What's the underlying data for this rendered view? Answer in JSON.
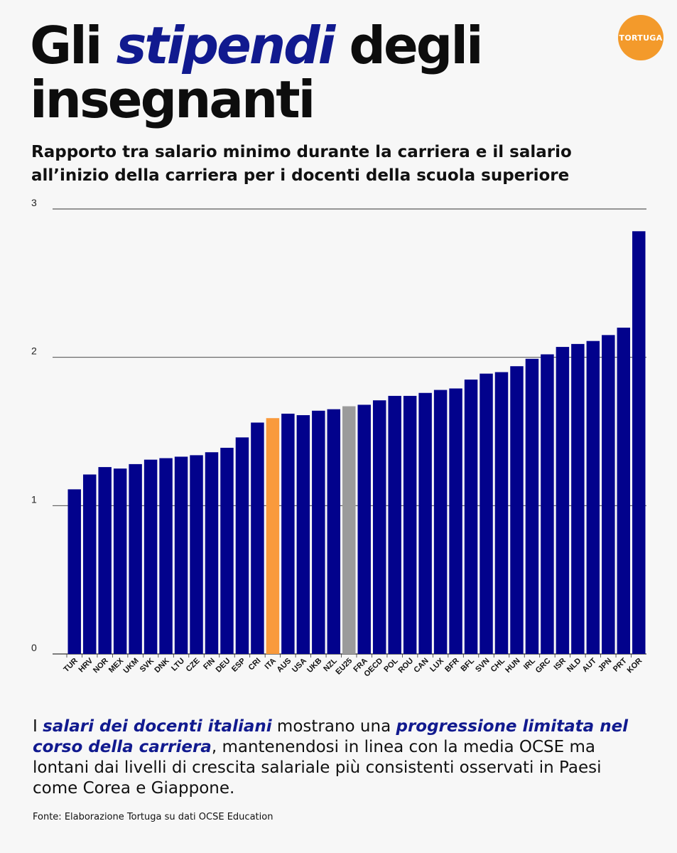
{
  "header": {
    "title_part1": "Gli ",
    "title_highlight": "stipendi",
    "title_part2": " degli",
    "title_line2": "insegnanti",
    "logo_text": "TORTUGA"
  },
  "subtitle": {
    "line1": "Rapporto tra salario minimo durante la carriera e il salario",
    "line2": "all’inizio della carriera per i docenti della scuola superiore"
  },
  "colors": {
    "bar": "#02028c",
    "highlight": "#f99a3c",
    "average": "#9b9b9b",
    "accent_text": "#111a8f",
    "logo": "#f39a2b"
  },
  "chart_data": {
    "type": "bar",
    "title": "Rapporto tra salario minimo durante la carriera e il salario all’inizio della carriera per i docenti della scuola superiore",
    "xlabel": "",
    "ylabel": "",
    "ylim": [
      0,
      3
    ],
    "yticks": [
      0,
      1,
      2,
      3
    ],
    "grid": true,
    "categories": [
      "TUR",
      "HRV",
      "NOR",
      "MEX",
      "UKM",
      "SVK",
      "DNK",
      "LTU",
      "CZE",
      "FIN",
      "DEU",
      "ESP",
      "CRI",
      "ITA",
      "AUS",
      "USA",
      "UKB",
      "NZL",
      "EU25",
      "FRA",
      "OECD",
      "POL",
      "ROU",
      "CAN",
      "LUX",
      "BFR",
      "BFL",
      "SVN",
      "CHL",
      "HUN",
      "IRL",
      "GRC",
      "ISR",
      "NLD",
      "AUT",
      "JPN",
      "PRT",
      "KOR"
    ],
    "values": [
      1.11,
      1.21,
      1.26,
      1.25,
      1.28,
      1.31,
      1.32,
      1.33,
      1.34,
      1.36,
      1.39,
      1.46,
      1.56,
      1.59,
      1.62,
      1.61,
      1.64,
      1.65,
      1.67,
      1.68,
      1.71,
      1.74,
      1.74,
      1.76,
      1.78,
      1.79,
      1.85,
      1.89,
      1.9,
      1.94,
      1.99,
      2.02,
      2.07,
      2.09,
      2.11,
      2.15,
      2.2,
      2.85
    ],
    "highlight_category": "ITA",
    "average_category": "EU25"
  },
  "description": {
    "p1": "I ",
    "em1": "salari dei docenti italiani",
    "p2": " mostrano una ",
    "em2": "progressione limitata nel corso della carriera",
    "p3": ", mantenendosi in linea con la media OCSE ma lontani dai livelli di crescita salariale più consistenti osservati in Paesi come Corea e Giappone."
  },
  "source": "Fonte: Elaborazione Tortuga su dati OCSE Education"
}
